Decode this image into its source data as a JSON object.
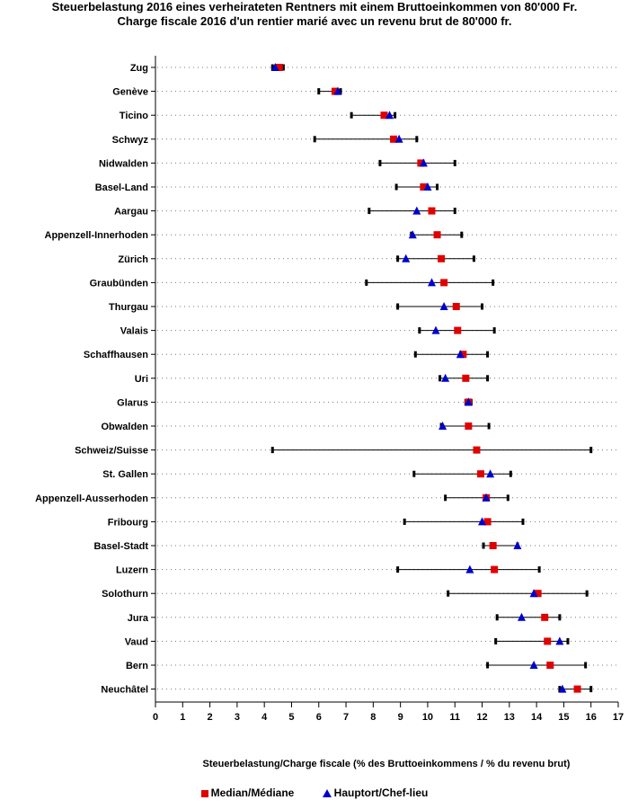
{
  "chart_data": {
    "type": "dot-range",
    "title": "Steuerbelastung 2016 eines verheirateten Rentners mit einem Bruttoeinkommen von 80'000 Fr.",
    "subtitle": "Charge fiscale 2016 d'un rentier marié avec un revenu brut de 80'000 fr.",
    "xlabel": "Steuerbelastung/Charge fiscale (% des Bruttoeinkommens / % du revenu brut)",
    "xlim": [
      0,
      17
    ],
    "xticks": [
      "0",
      "1",
      "2",
      "3",
      "4",
      "5",
      "6",
      "7",
      "8",
      "9",
      "10",
      "11",
      "12",
      "13",
      "14",
      "15",
      "16",
      "17"
    ],
    "legend": {
      "median": "Median/Médiane",
      "capital": "Hauptort/Chef-lieu"
    },
    "colors": {
      "median": "#e00000",
      "capital": "#0000cc",
      "range": "#000000",
      "grid": "#777777"
    },
    "rows": [
      {
        "name": "Zug",
        "min": 4.3,
        "max": 4.7,
        "median": 4.55,
        "capital": 4.4
      },
      {
        "name": "Genève",
        "min": 6.0,
        "max": 6.8,
        "median": 6.6,
        "capital": 6.7
      },
      {
        "name": "Ticino",
        "min": 7.2,
        "max": 8.8,
        "median": 8.4,
        "capital": 8.6
      },
      {
        "name": "Schwyz",
        "min": 5.85,
        "max": 9.6,
        "median": 8.75,
        "capital": 8.95
      },
      {
        "name": "Nidwalden",
        "min": 8.25,
        "max": 11.0,
        "median": 9.75,
        "capital": 9.85
      },
      {
        "name": "Basel-Land",
        "min": 8.85,
        "max": 10.35,
        "median": 9.85,
        "capital": 10.0
      },
      {
        "name": "Aargau",
        "min": 7.85,
        "max": 11.0,
        "median": 10.15,
        "capital": 9.6
      },
      {
        "name": "Appenzell-Innerhoden",
        "min": 9.4,
        "max": 11.25,
        "median": 10.35,
        "capital": 9.45
      },
      {
        "name": "Zürich",
        "min": 8.9,
        "max": 11.7,
        "median": 10.5,
        "capital": 9.2
      },
      {
        "name": "Graubünden",
        "min": 7.75,
        "max": 12.4,
        "median": 10.6,
        "capital": 10.15
      },
      {
        "name": "Thurgau",
        "min": 8.9,
        "max": 12.0,
        "median": 11.05,
        "capital": 10.6
      },
      {
        "name": "Valais",
        "min": 9.7,
        "max": 12.45,
        "median": 11.1,
        "capital": 10.3
      },
      {
        "name": "Schaffhausen",
        "min": 9.55,
        "max": 12.2,
        "median": 11.3,
        "capital": 11.2
      },
      {
        "name": "Uri",
        "min": 10.45,
        "max": 12.2,
        "median": 11.4,
        "capital": 10.65
      },
      {
        "name": "Glarus",
        "min": 11.4,
        "max": 11.6,
        "median": 11.5,
        "capital": 11.5
      },
      {
        "name": "Obwalden",
        "min": 10.5,
        "max": 12.25,
        "median": 11.5,
        "capital": 10.55
      },
      {
        "name": "Schweiz/Suisse",
        "min": 4.3,
        "max": 16.0,
        "median": 11.8,
        "capital": null
      },
      {
        "name": "St. Gallen",
        "min": 9.5,
        "max": 13.05,
        "median": 11.95,
        "capital": 12.3
      },
      {
        "name": "Appenzell-Ausserhoden",
        "min": 10.65,
        "max": 12.95,
        "median": 12.15,
        "capital": 12.15
      },
      {
        "name": "Fribourg",
        "min": 9.15,
        "max": 13.5,
        "median": 12.2,
        "capital": 12.0
      },
      {
        "name": "Basel-Stadt",
        "min": 12.05,
        "max": 13.3,
        "median": 12.4,
        "capital": 13.3
      },
      {
        "name": "Luzern",
        "min": 8.9,
        "max": 14.1,
        "median": 12.45,
        "capital": 11.55
      },
      {
        "name": "Solothurn",
        "min": 10.75,
        "max": 15.85,
        "median": 14.05,
        "capital": 13.9
      },
      {
        "name": "Jura",
        "min": 12.55,
        "max": 14.85,
        "median": 14.3,
        "capital": 13.45
      },
      {
        "name": "Vaud",
        "min": 12.5,
        "max": 15.15,
        "median": 14.4,
        "capital": 14.85
      },
      {
        "name": "Bern",
        "min": 12.2,
        "max": 15.8,
        "median": 14.5,
        "capital": 13.9
      },
      {
        "name": "Neuchâtel",
        "min": 14.85,
        "max": 16.0,
        "median": 15.5,
        "capital": 14.95
      }
    ]
  }
}
